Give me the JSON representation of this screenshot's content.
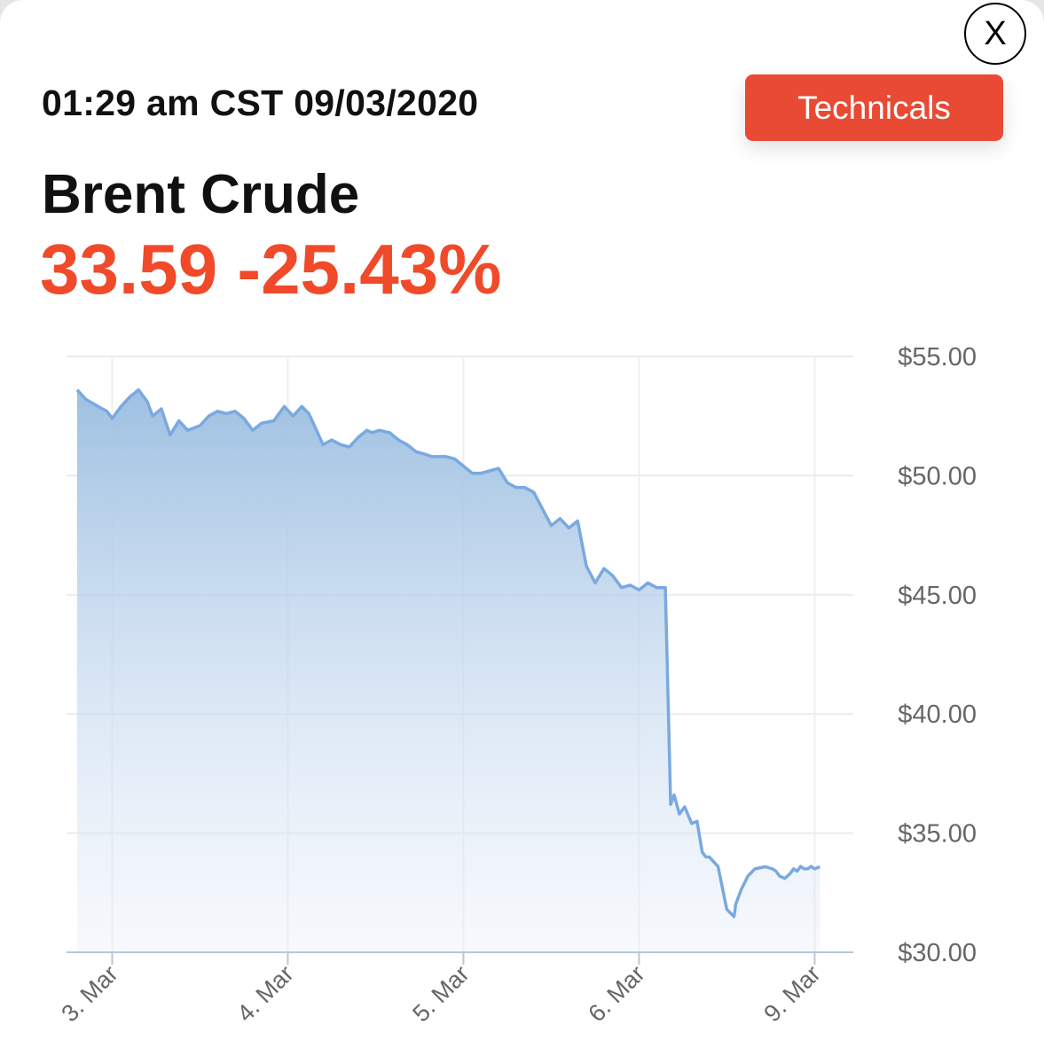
{
  "header": {
    "close_label": "X",
    "timestamp": "01:29 am CST 09/03/2020",
    "technicals_label": "Technicals",
    "instrument": "Brent Crude",
    "quote": "33.59 -25.43%"
  },
  "colors": {
    "accent": "#e84a33",
    "negative": "#f04a2a",
    "line": "#7aa9e0",
    "area_top": "#9ec0e2"
  },
  "chart_data": {
    "type": "area",
    "title": "",
    "xlabel": "",
    "ylabel": "",
    "ylim": [
      30,
      55
    ],
    "y_ticks": [
      {
        "value": 55,
        "label": "$55.00"
      },
      {
        "value": 50,
        "label": "$50.00"
      },
      {
        "value": 45,
        "label": "$45.00"
      },
      {
        "value": 40,
        "label": "$40.00"
      },
      {
        "value": 35,
        "label": "$35.00"
      },
      {
        "value": 30,
        "label": "$30.00"
      }
    ],
    "x_ticks": [
      {
        "value": 0,
        "label": "3. Mar"
      },
      {
        "value": 1,
        "label": "4. Mar"
      },
      {
        "value": 2,
        "label": "5. Mar"
      },
      {
        "value": 3,
        "label": "6. Mar"
      },
      {
        "value": 4,
        "label": "9. Mar"
      }
    ],
    "xlim": [
      -0.26,
      4.22
    ],
    "grid": true,
    "legend": "none",
    "series": [
      {
        "x": [
          -0.2,
          -0.15,
          -0.08,
          -0.03,
          0,
          0.05,
          0.1,
          0.15,
          0.2,
          0.23,
          0.28,
          0.33,
          0.38,
          0.43,
          0.5,
          0.55,
          0.6,
          0.65,
          0.7,
          0.75,
          0.8,
          0.85,
          0.92,
          0.98,
          1.03,
          1.08,
          1.12,
          1.17,
          1.2,
          1.25,
          1.3,
          1.35,
          1.4,
          1.45,
          1.48,
          1.52,
          1.58,
          1.63,
          1.68,
          1.73,
          1.78,
          1.82,
          1.9,
          1.95,
          2.0,
          2.05,
          2.1,
          2.15,
          2.2,
          2.25,
          2.3,
          2.35,
          2.4,
          2.45,
          2.5,
          2.55,
          2.6,
          2.65,
          2.7,
          2.75,
          2.8,
          2.85,
          2.9,
          2.95,
          3.0,
          3.05,
          3.1,
          3.15,
          3.18,
          3.2,
          3.23,
          3.26,
          3.3,
          3.33,
          3.36,
          3.38,
          3.4,
          3.45,
          3.5,
          3.54,
          3.545,
          3.55,
          3.58,
          3.62,
          3.66,
          3.72,
          3.76,
          3.78,
          3.8,
          3.83,
          3.86,
          3.88,
          3.9,
          3.92,
          3.94,
          3.96,
          3.98,
          4.0,
          4.03
        ],
        "y": [
          53.6,
          53.2,
          52.9,
          52.7,
          52.4,
          52.9,
          53.3,
          53.6,
          53.1,
          52.5,
          52.8,
          51.7,
          52.3,
          51.9,
          52.1,
          52.5,
          52.7,
          52.6,
          52.7,
          52.4,
          51.9,
          52.2,
          52.3,
          52.9,
          52.5,
          52.9,
          52.6,
          51.8,
          51.3,
          51.5,
          51.3,
          51.2,
          51.6,
          51.9,
          51.8,
          51.9,
          51.8,
          51.5,
          51.3,
          51.0,
          50.9,
          50.8,
          50.8,
          50.7,
          50.4,
          50.1,
          50.1,
          50.2,
          50.3,
          49.7,
          49.5,
          49.5,
          49.3,
          48.6,
          47.9,
          48.2,
          47.8,
          48.1,
          46.2,
          45.5,
          46.1,
          45.8,
          45.3,
          45.4,
          45.2,
          45.5,
          45.3,
          45.3,
          36.2,
          36.6,
          35.8,
          36.1,
          35.4,
          35.5,
          34.2,
          34.0,
          34.0,
          33.6,
          31.8,
          31.5,
          31.7,
          32.0,
          32.6,
          33.2,
          33.5,
          33.59,
          33.5,
          33.4,
          33.2,
          33.1,
          33.3,
          33.5,
          33.4,
          33.6,
          33.5,
          33.5,
          33.6,
          33.5,
          33.59
        ]
      }
    ]
  }
}
